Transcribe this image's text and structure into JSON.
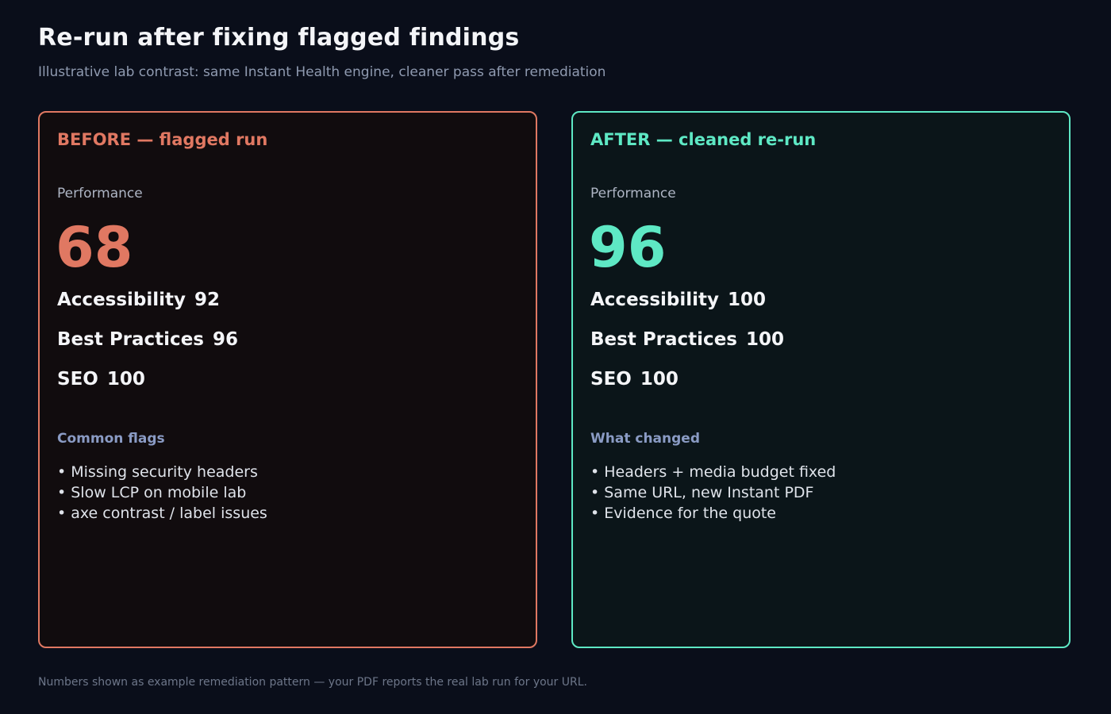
{
  "header": {
    "title": "Re-run after fixing flagged findings",
    "subtitle": "Illustrative lab contrast: same Instant Health engine, cleaner pass after remediation"
  },
  "before": {
    "title": "BEFORE — flagged run",
    "performance_label": "Performance",
    "performance_score": "68",
    "metrics": [
      {
        "label": "Accessibility",
        "value": "92"
      },
      {
        "label": "Best Practices",
        "value": "96"
      },
      {
        "label": "SEO",
        "value": "100"
      }
    ],
    "list_heading": "Common flags",
    "items": [
      "Missing security headers",
      "Slow LCP on mobile lab",
      "axe contrast / label issues"
    ]
  },
  "after": {
    "title": "AFTER — cleaned re-run",
    "performance_label": "Performance",
    "performance_score": "96",
    "metrics": [
      {
        "label": "Accessibility",
        "value": "100"
      },
      {
        "label": "Best Practices",
        "value": "100"
      },
      {
        "label": "SEO",
        "value": "100"
      }
    ],
    "list_heading": "What changed",
    "items": [
      "Headers + media budget fixed",
      "Same URL, new Instant PDF",
      "Evidence for the quote"
    ]
  },
  "footnote": "Numbers shown as example remediation pattern — your PDF reports the real lab run for your URL.",
  "colors": {
    "background": "#0a0e1a",
    "before_accent": "#e07862",
    "after_accent": "#5ee8c4",
    "muted_heading": "#8a9bc4"
  }
}
